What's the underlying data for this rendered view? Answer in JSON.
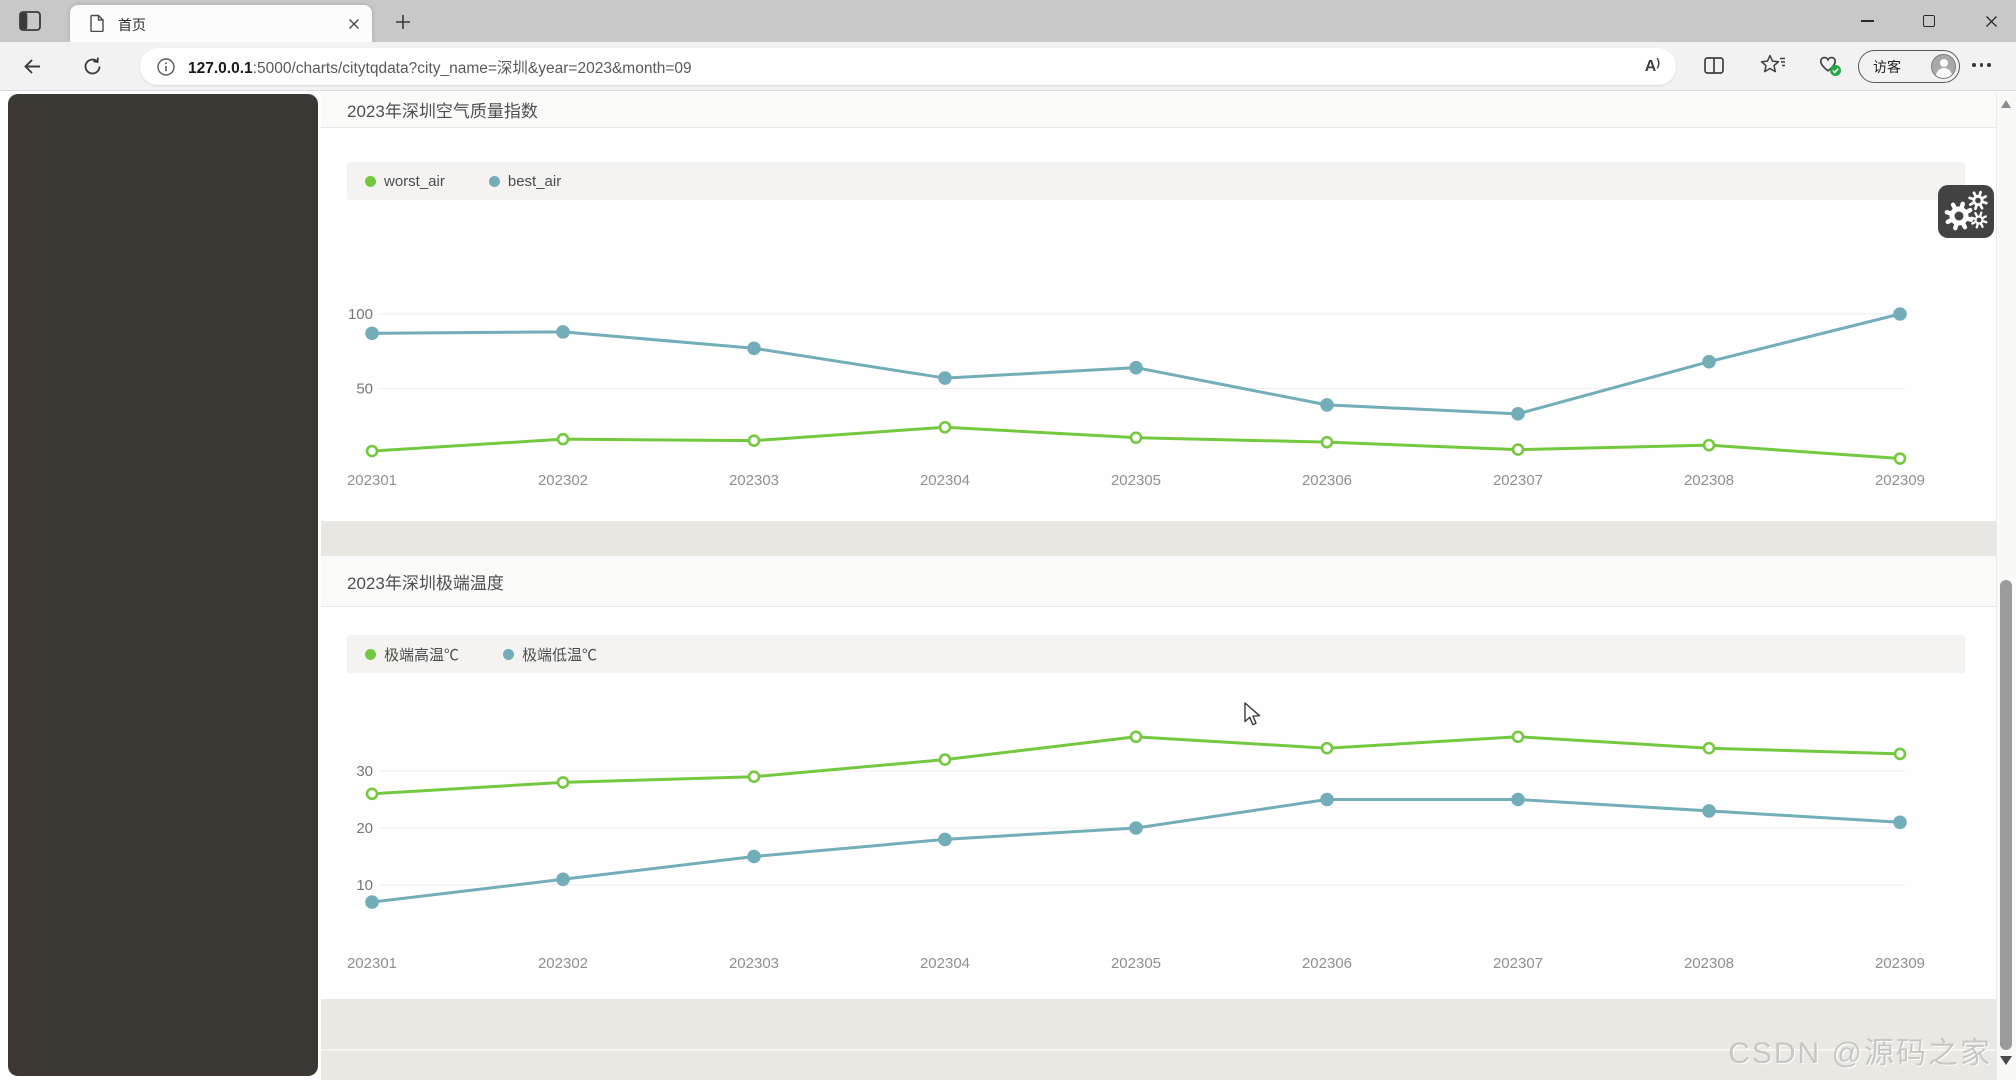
{
  "browser": {
    "tab": {
      "title": "首页"
    },
    "address": {
      "host": "127.0.0.1",
      "path": ":5000/charts/citytqdata?city_name=深圳&year=2023&month=09"
    },
    "profile": {
      "label": "访客"
    }
  },
  "page": {
    "watermark": "CSDN @源码之家"
  },
  "chart_data": [
    {
      "type": "line",
      "title": "2023年深圳空气质量指数",
      "categories": [
        "202301",
        "202302",
        "202303",
        "202304",
        "202305",
        "202306",
        "202307",
        "202308",
        "202309"
      ],
      "series": [
        {
          "name": "worst_air",
          "color": "#74c83f",
          "point_style": "hollow",
          "values": [
            8,
            16,
            15,
            24,
            17,
            14,
            9,
            12,
            3
          ]
        },
        {
          "name": "best_air",
          "color": "#73adba",
          "point_style": "solid",
          "values": [
            87,
            88,
            77,
            57,
            64,
            39,
            33,
            68,
            100
          ]
        }
      ],
      "y_ticks": [
        50,
        100
      ],
      "y_range": [
        0,
        110
      ],
      "grid": true,
      "legend_position": "top-left"
    },
    {
      "type": "line",
      "title": "2023年深圳极端温度",
      "categories": [
        "202301",
        "202302",
        "202303",
        "202304",
        "202305",
        "202306",
        "202307",
        "202308",
        "202309"
      ],
      "series": [
        {
          "name": "极端高温℃",
          "color": "#74c83f",
          "point_style": "hollow",
          "values": [
            26,
            28,
            29,
            32,
            36,
            34,
            36,
            34,
            33
          ]
        },
        {
          "name": "极端低温℃",
          "color": "#73adba",
          "point_style": "solid",
          "values": [
            7,
            11,
            15,
            18,
            20,
            25,
            25,
            23,
            21
          ]
        }
      ],
      "y_ticks": [
        10,
        20,
        30
      ],
      "y_range": [
        0,
        40
      ],
      "grid": true,
      "legend_position": "top-left"
    }
  ]
}
